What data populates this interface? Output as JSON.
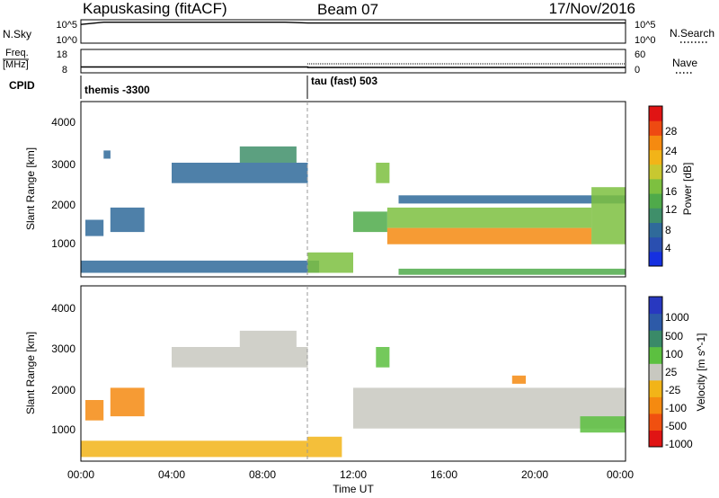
{
  "header": {
    "station": "Kapuskasing (fitACF)",
    "beam": "Beam 07",
    "date": "17/Nov/2016"
  },
  "top_panels": {
    "nsky_label": "N.Sky",
    "nsky_ticks": [
      "10^5",
      "10^0"
    ],
    "nsearch_label": "N.Search",
    "nsearch_ticks": [
      "10^5",
      "10^0"
    ],
    "freq_label_1": "Freq.",
    "freq_label_2": "[MHz]",
    "freq_ticks": [
      "18",
      "8"
    ],
    "nave_label": "Nave",
    "nave_ticks": [
      "60",
      "0"
    ],
    "cpid_label": "CPID",
    "cpid_modes": [
      {
        "text": "themis -3300",
        "start_hour": 0
      },
      {
        "text": "tau (fast) 503",
        "start_hour": 10
      }
    ]
  },
  "axes": {
    "ylabel": "Slant Range [km]",
    "yticks": [
      "4000",
      "3000",
      "2000",
      "1000"
    ],
    "xlabel": "Time UT",
    "xticks": [
      "00:00",
      "04:00",
      "08:00",
      "12:00",
      "16:00",
      "20:00",
      "00:00"
    ]
  },
  "colorbars": {
    "power": {
      "label": "Power [dB]",
      "ticks": [
        "28",
        "24",
        "20",
        "16",
        "12",
        "8",
        "4"
      ],
      "colors": [
        "#1530e0",
        "#2a4fb0",
        "#2f6a9a",
        "#3f8f6a",
        "#4faa4a",
        "#7dc040",
        "#c8c830",
        "#f2b418",
        "#f58a10",
        "#ee4a12",
        "#e01414"
      ]
    },
    "velocity": {
      "label": "Velocity [m s^-1]",
      "ticks": [
        "1000",
        "500",
        "100",
        "25",
        "-25",
        "-100",
        "-500",
        "-1000"
      ],
      "colors": [
        "#2838c0",
        "#2d5aa8",
        "#3a8a68",
        "#5cc040",
        "#c8c8c0",
        "#f2b418",
        "#f58a10",
        "#f05010",
        "#e01414"
      ]
    }
  },
  "chart_data": [
    {
      "type": "line",
      "name": "N.Sky",
      "x_hours": [
        0,
        1,
        2,
        3,
        4,
        5,
        6,
        7,
        8,
        9,
        10,
        11,
        12,
        13,
        14,
        15,
        16,
        17,
        18,
        19,
        20,
        21,
        22,
        23,
        24
      ],
      "values": [
        10000.0,
        30000.0,
        30000.0,
        30000.0,
        30000.0,
        30000.0,
        30000.0,
        30000.0,
        30000.0,
        30000.0,
        20000.0,
        20000.0,
        20000.0,
        20000.0,
        20000.0,
        20000.0,
        20000.0,
        20000.0,
        20000.0,
        20000.0,
        20000.0,
        20000.0,
        20000.0,
        20000.0,
        20000.0
      ],
      "ylim": [
        1,
        100000
      ]
    },
    {
      "type": "line",
      "name": "Freq.",
      "x_hours": [
        0,
        10,
        10,
        24
      ],
      "values": [
        10.5,
        10.5,
        10.3,
        10.3
      ],
      "ylim": [
        8,
        18
      ]
    },
    {
      "type": "heatmap",
      "name": "Power [dB]",
      "x_range_hours": [
        0,
        24
      ],
      "y_range_km": [
        200,
        4500
      ],
      "regions": [
        {
          "t0": 0.0,
          "t1": 10.5,
          "r0": 300,
          "r1": 600,
          "value": 8
        },
        {
          "t0": 0.2,
          "t1": 1.0,
          "r0": 1200,
          "r1": 1600,
          "value": 6
        },
        {
          "t0": 1.3,
          "t1": 2.8,
          "r0": 1300,
          "r1": 1900,
          "value": 6
        },
        {
          "t0": 1.0,
          "t1": 1.3,
          "r0": 3100,
          "r1": 3300,
          "value": 6
        },
        {
          "t0": 4.0,
          "t1": 10.0,
          "r0": 2500,
          "r1": 3000,
          "value": 8
        },
        {
          "t0": 7.0,
          "t1": 9.5,
          "r0": 3000,
          "r1": 3400,
          "value": 10
        },
        {
          "t0": 10.0,
          "t1": 12.0,
          "r0": 300,
          "r1": 800,
          "value": 14
        },
        {
          "t0": 12.0,
          "t1": 13.5,
          "r0": 1300,
          "r1": 1800,
          "value": 12
        },
        {
          "t0": 13.0,
          "t1": 13.6,
          "r0": 2500,
          "r1": 3000,
          "value": 16
        },
        {
          "t0": 13.5,
          "t1": 22.5,
          "r0": 1400,
          "r1": 1900,
          "value": 14
        },
        {
          "t0": 13.5,
          "t1": 22.5,
          "r0": 1000,
          "r1": 1400,
          "value": 24
        },
        {
          "t0": 14.0,
          "t1": 24.0,
          "r0": 2000,
          "r1": 2200,
          "value": 8
        },
        {
          "t0": 14.0,
          "t1": 24.0,
          "r0": 250,
          "r1": 400,
          "value": 12
        },
        {
          "t0": 22.5,
          "t1": 24.0,
          "r0": 1000,
          "r1": 2400,
          "value": 16
        }
      ]
    },
    {
      "type": "heatmap",
      "name": "Velocity [m s^-1]",
      "x_range_hours": [
        0,
        24
      ],
      "y_range_km": [
        200,
        4500
      ],
      "regions": [
        {
          "t0": 0.0,
          "t1": 10.0,
          "r0": 300,
          "r1": 700,
          "value": -60
        },
        {
          "t0": 0.2,
          "t1": 1.0,
          "r0": 1200,
          "r1": 1700,
          "value": -300
        },
        {
          "t0": 1.3,
          "t1": 2.8,
          "r0": 1300,
          "r1": 2000,
          "value": -300
        },
        {
          "t0": 4.0,
          "t1": 10.0,
          "r0": 2500,
          "r1": 3000,
          "value": 0
        },
        {
          "t0": 7.0,
          "t1": 9.5,
          "r0": 3000,
          "r1": 3400,
          "value": 0
        },
        {
          "t0": 10.0,
          "t1": 11.5,
          "r0": 300,
          "r1": 800,
          "value": -60
        },
        {
          "t0": 12.0,
          "t1": 24.0,
          "r0": 1000,
          "r1": 2000,
          "value": 0
        },
        {
          "t0": 13.0,
          "t1": 13.6,
          "r0": 2500,
          "r1": 3000,
          "value": 60
        },
        {
          "t0": 19.0,
          "t1": 19.6,
          "r0": 2100,
          "r1": 2300,
          "value": -300
        },
        {
          "t0": 22.0,
          "t1": 24.0,
          "r0": 900,
          "r1": 1300,
          "value": 60
        }
      ]
    }
  ]
}
